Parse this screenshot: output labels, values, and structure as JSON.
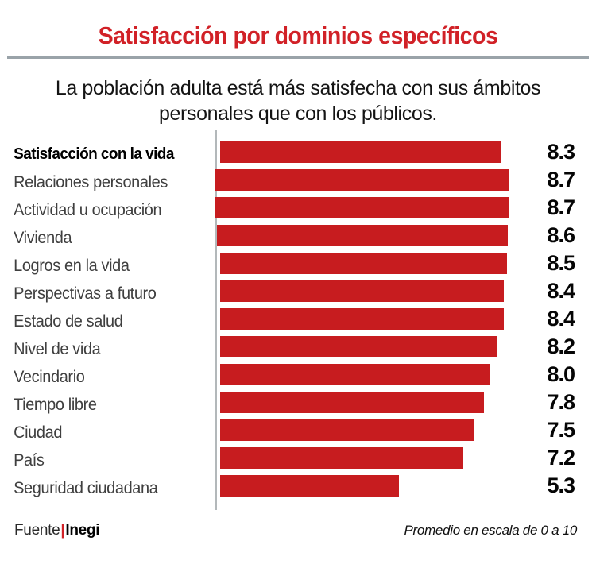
{
  "title": "Satisfacción por dominios específicos",
  "subtitle_lines": [
    "La población adulta está más satisfecha con sus ámbitos",
    "personales que con los públicos."
  ],
  "footer": {
    "source_label": "Fuente",
    "source_divider": "|",
    "source_name": "Inegi",
    "note": "Promedio en escala de 0 a 10"
  },
  "colors": {
    "bar": "#c71c1f",
    "title": "#d12127",
    "axis_line": "#b3b8ba",
    "title_rule": "#9aa3a9",
    "label_text": "#3f3f3f",
    "value_text": "#050505"
  },
  "chart_data": {
    "type": "bar",
    "orientation": "horizontal",
    "title": "Satisfacción por dominios específicos",
    "subtitle": "La población adulta está más satisfecha con sus ámbitos personales que con los públicos.",
    "categories": [
      "Satisfacción con la vida",
      "Relaciones personales",
      "Actividad u ocupación",
      "Vivienda",
      "Logros en la vida",
      "Perspectivas a futuro",
      "Estado de salud",
      "Nivel de vida",
      "Vecindario",
      "Tiempo libre",
      "Ciudad",
      "País",
      "Seguridad ciudadana"
    ],
    "values": [
      8.3,
      8.7,
      8.7,
      8.6,
      8.5,
      8.4,
      8.4,
      8.2,
      8.0,
      7.8,
      7.5,
      7.2,
      5.3
    ],
    "xlim": [
      0,
      10
    ],
    "grid": false,
    "legend": false,
    "value_labels_shown": true,
    "emphasized_category_index": 0,
    "note": "Promedio en escala de 0 a 10",
    "source": "Inegi"
  }
}
